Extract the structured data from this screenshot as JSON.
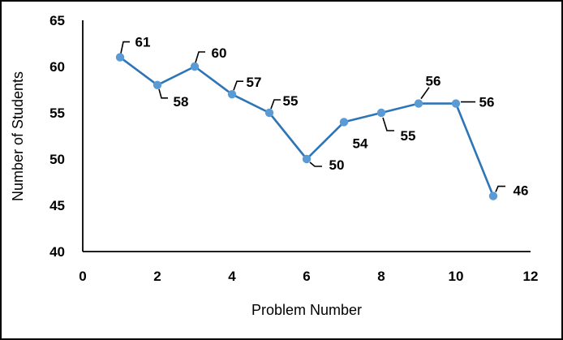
{
  "figure": {
    "background_color": "#ffffff",
    "border_color": "#000000"
  },
  "chart_data": {
    "type": "line",
    "title": "",
    "xlabel": "Problem Number",
    "ylabel": "Number of Students",
    "x": [
      1,
      2,
      3,
      4,
      5,
      6,
      7,
      8,
      9,
      10,
      11
    ],
    "values": [
      61,
      58,
      60,
      57,
      55,
      50,
      54,
      55,
      56,
      56,
      46
    ],
    "data_labels": [
      "61",
      "58",
      "60",
      "57",
      "55",
      "50",
      "54",
      "55",
      "56",
      "56",
      "46"
    ],
    "xlim": [
      0,
      12
    ],
    "ylim": [
      40,
      65
    ],
    "x_ticks": [
      0,
      2,
      4,
      6,
      8,
      10,
      12
    ],
    "y_ticks": [
      40,
      45,
      50,
      55,
      60,
      65
    ],
    "grid": false,
    "legend": "none",
    "line_color": "#2e75b6",
    "marker_color": "#5b9bd5",
    "leader_color": "#000000",
    "label_color": "#000000",
    "axis_color": "#000000"
  }
}
